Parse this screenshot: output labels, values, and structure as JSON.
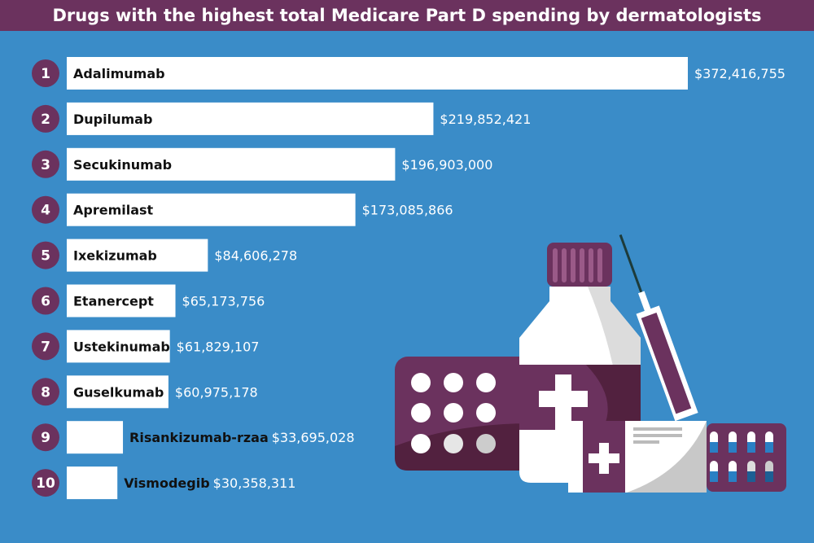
{
  "chart_data": {
    "type": "bar",
    "orientation": "horizontal",
    "title": "Drugs with the highest total Medicare Part D spending by dermatologists",
    "ranks": [
      "1",
      "2",
      "3",
      "4",
      "5",
      "6",
      "7",
      "8",
      "9",
      "10"
    ],
    "categories": [
      "Adalimumab",
      "Dupilumab",
      "Secukinumab",
      "Apremilast",
      "Ixekizumab",
      "Etanercept",
      "Ustekinumab",
      "Guselkumab",
      "Risankizumab-rzaa",
      "Vismodegib"
    ],
    "values": [
      372416755,
      219852421,
      196903000,
      173085866,
      84606278,
      65173756,
      61829107,
      60975178,
      33695028,
      30358311
    ],
    "value_labels": [
      "$372,416,755",
      "$219,852,421",
      "$196,903,000",
      "$173,085,866",
      "$84,606,278",
      "$65,173,756",
      "$61,829,107",
      "$60,975,178",
      "$33,695,028",
      "$30,358,311"
    ],
    "grid": false,
    "colors": {
      "background": "#3a8cc8",
      "bar": "#ffffff",
      "rank_badge": "#6b325e",
      "header": "#6b325e"
    }
  }
}
